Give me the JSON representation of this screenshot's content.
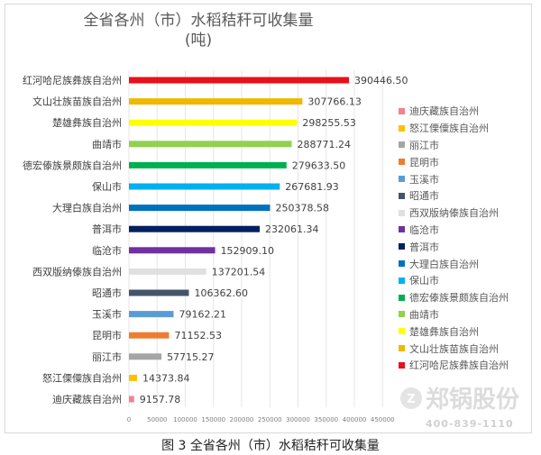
{
  "chart_data": {
    "type": "bar",
    "orientation": "horizontal",
    "title": "全省各州（市）水稻秸秆可收集量",
    "title_line2": "(吨)",
    "categories": [
      "红河哈尼族彝族自治州",
      "文山壮族苗族自治州",
      "楚雄彝族自治州",
      "曲靖市",
      "德宏傣族景颇族自治州",
      "保山市",
      "大理白族自治州",
      "普洱市",
      "临沧市",
      "西双版纳傣族自治州",
      "昭通市",
      "玉溪市",
      "昆明市",
      "丽江市",
      "怒江傈僳族自治州",
      "迪庆藏族自治州"
    ],
    "values": [
      390446.5,
      307766.13,
      298255.53,
      288771.24,
      279633.5,
      267681.93,
      250378.58,
      232061.34,
      152909.1,
      137201.54,
      106362.6,
      79162.21,
      71152.53,
      57715.27,
      14373.84,
      9157.78
    ],
    "value_labels": [
      "390446.50",
      "307766.13",
      "298255.53",
      "288771.24",
      "279633.50",
      "267681.93",
      "250378.58",
      "232061.34",
      "152909.10",
      "137201.54",
      "106362.60",
      "79162.21",
      "71152.53",
      "57715.27",
      "14373.84",
      "9157.78"
    ],
    "colors": [
      "#e8101a",
      "#f0b800",
      "#ffff00",
      "#92d050",
      "#00b050",
      "#00b0f0",
      "#0070c0",
      "#002060",
      "#7030a0",
      "#e0e0e0",
      "#44546a",
      "#5b9bd5",
      "#ed7d31",
      "#a5a5a5",
      "#ffc000",
      "#f4818c"
    ],
    "xlim": [
      0,
      450000
    ],
    "xticks": [
      "0",
      "50000",
      "100000",
      "150000",
      "200000",
      "250000",
      "300000",
      "350000",
      "400000",
      "450000"
    ],
    "grid": true,
    "legend_position": "right",
    "legend_order": [
      "迪庆藏族自治州",
      "怒江傈僳族自治州",
      "丽江市",
      "昆明市",
      "玉溪市",
      "昭通市",
      "西双版纳傣族自治州",
      "临沧市",
      "普洱市",
      "大理白族自治州",
      "保山市",
      "德宏傣族景颇族自治州",
      "曲靖市",
      "楚雄彝族自治州",
      "文山壮族苗族自治州",
      "红河哈尼族彝族自治州"
    ]
  },
  "caption": "图 3 全省各州（市）水稻秸秆可收集量",
  "watermark": {
    "brand": "郑锅股份",
    "phone": "400-839-1110"
  }
}
